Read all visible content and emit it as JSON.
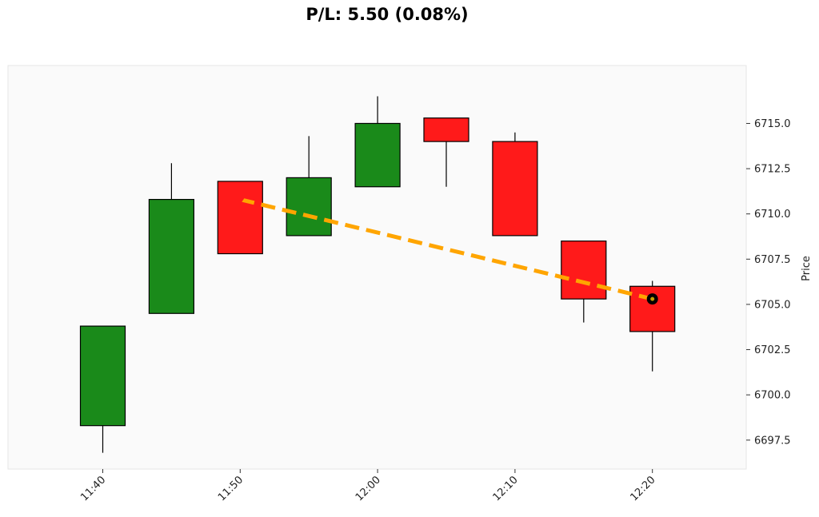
{
  "chart_data": {
    "type": "candlestick",
    "title": "P/L: 5.50 (0.08%)",
    "ylabel": "Price",
    "xlabel": "",
    "ylim": [
      6695.9,
      6718.2
    ],
    "y_ticks": [
      "6697.5",
      "6700.0",
      "6702.5",
      "6705.0",
      "6707.5",
      "6710.0",
      "6712.5",
      "6715.0"
    ],
    "x_ticks": [
      "11:40",
      "11:50",
      "12:00",
      "12:10",
      "12:20"
    ],
    "x_tick_index": [
      0,
      2,
      4,
      6,
      8
    ],
    "y_axis_side": "right",
    "grid": false,
    "colors": {
      "up": "#1a8a1a",
      "down": "#ff1a1a",
      "trade_line": "#ffa500",
      "background": "#fafafa"
    },
    "candles": [
      {
        "time": "11:40",
        "open": 6698.3,
        "high": 6703.8,
        "low": 6696.8,
        "close": 6703.8
      },
      {
        "time": "11:45",
        "open": 6704.5,
        "high": 6712.8,
        "low": 6704.5,
        "close": 6710.8
      },
      {
        "time": "11:50",
        "open": 6711.8,
        "high": 6711.8,
        "low": 6707.8,
        "close": 6707.8
      },
      {
        "time": "11:55",
        "open": 6708.8,
        "high": 6714.3,
        "low": 6708.8,
        "close": 6712.0
      },
      {
        "time": "12:00",
        "open": 6711.5,
        "high": 6716.5,
        "low": 6711.5,
        "close": 6715.0
      },
      {
        "time": "12:05",
        "open": 6715.3,
        "high": 6715.3,
        "low": 6711.5,
        "close": 6714.0
      },
      {
        "time": "12:10",
        "open": 6714.0,
        "high": 6714.5,
        "low": 6708.8,
        "close": 6708.8
      },
      {
        "time": "12:15",
        "open": 6708.5,
        "high": 6708.5,
        "low": 6704.0,
        "close": 6705.3
      },
      {
        "time": "12:20",
        "open": 6706.0,
        "high": 6706.3,
        "low": 6701.3,
        "close": 6703.5
      }
    ],
    "trade": {
      "entry": {
        "index": 2,
        "price": 6710.8,
        "marker": "down-triangle"
      },
      "exit": {
        "index": 8,
        "price": 6705.3,
        "marker": "circle"
      }
    }
  }
}
